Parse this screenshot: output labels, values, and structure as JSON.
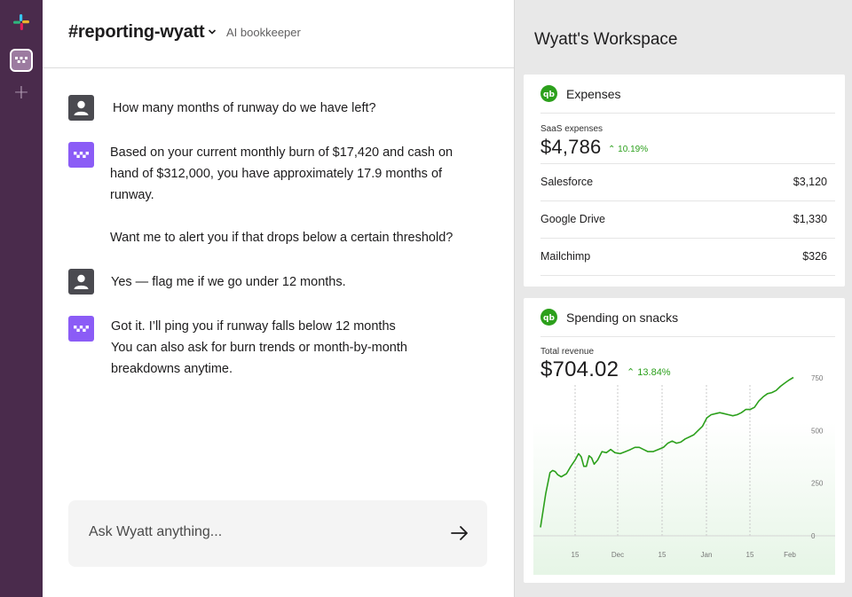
{
  "channel": {
    "name": "#reporting-wyatt",
    "subtitle": "AI bookkeeper"
  },
  "messages": [
    {
      "sender": "user",
      "lines": [
        "How many months of runway do we have left?"
      ]
    },
    {
      "sender": "bot",
      "lines": [
        "Based on your current monthly burn of $17,420 and cash on",
        "hand of $312,000, you have approximately 17.9 months of",
        "runway.",
        "",
        "Want me to alert you if that drops below a certain threshold?"
      ]
    },
    {
      "sender": "user",
      "lines": [
        "Yes — flag me if we go under 12 months."
      ]
    },
    {
      "sender": "bot",
      "lines": [
        "Got it. I’ll ping you if runway falls below 12 months",
        "You can also ask for burn trends or month-by-month",
        "breakdowns anytime."
      ]
    }
  ],
  "composer": {
    "placeholder": "Ask Wyatt anything..."
  },
  "workspace": {
    "title": "Wyatt's Workspace",
    "expenses": {
      "title": "Expenses",
      "metric_label": "SaaS expenses",
      "metric_value": "$4,786",
      "metric_change": "10.19%",
      "rows": [
        {
          "label": "Salesforce",
          "value": "$3,120"
        },
        {
          "label": "Google Drive",
          "value": "$1,330"
        },
        {
          "label": "Mailchimp",
          "value": "$326"
        }
      ]
    },
    "snacks": {
      "title": "Spending on snacks",
      "metric_label": "Total revenue",
      "metric_value": "$704.02",
      "metric_change": "13.84%"
    }
  },
  "colors": {
    "rail": "#4a2b4c",
    "accent_green": "#2ca01c",
    "bot_avatar": "#8b5cf6"
  },
  "icons": {
    "rail_logo": "slack-logo-icon",
    "workspace": "wyatt-workspace-icon",
    "add": "plus-icon",
    "send": "arrow-right-icon",
    "quickbooks": "quickbooks-icon"
  },
  "chart_data": {
    "type": "line",
    "x_ticks": [
      "15",
      "Dec",
      "15",
      "Jan",
      "15",
      "Feb"
    ],
    "y_ticks": [
      "750",
      "500",
      "250",
      "0"
    ],
    "ylim": [
      0,
      750
    ],
    "series": [
      {
        "x": [
          0,
          0.3,
          0.55,
          0.7,
          0.85,
          1.0,
          1.2,
          1.5,
          1.75,
          2.0,
          2.2,
          2.35,
          2.5,
          2.65,
          2.8,
          2.95,
          3.1,
          3.3,
          3.55,
          3.8,
          4.05,
          4.3,
          4.6,
          4.9,
          5.2,
          5.45,
          5.7,
          5.95,
          6.2,
          6.5,
          6.8,
          7.1,
          7.35,
          7.6,
          7.85,
          8.1,
          8.35,
          8.6,
          8.85,
          9.1,
          9.35,
          9.6,
          9.85,
          10.1,
          10.35,
          10.6,
          10.85,
          11.1,
          11.35,
          11.6,
          11.85,
          12.1,
          12.35,
          12.6,
          12.85,
          13.1,
          13.35,
          13.6,
          13.85,
          14.1,
          14.35,
          14.6
        ],
        "y": [
          40,
          200,
          300,
          310,
          305,
          290,
          280,
          295,
          330,
          360,
          390,
          375,
          330,
          330,
          380,
          370,
          340,
          360,
          400,
          395,
          410,
          395,
          390,
          400,
          410,
          420,
          420,
          410,
          400,
          400,
          410,
          420,
          440,
          450,
          440,
          445,
          460,
          470,
          480,
          500,
          520,
          560,
          575,
          580,
          585,
          580,
          575,
          570,
          575,
          585,
          600,
          600,
          610,
          640,
          660,
          675,
          680,
          690,
          710,
          725,
          740,
          752
        ]
      }
    ]
  }
}
